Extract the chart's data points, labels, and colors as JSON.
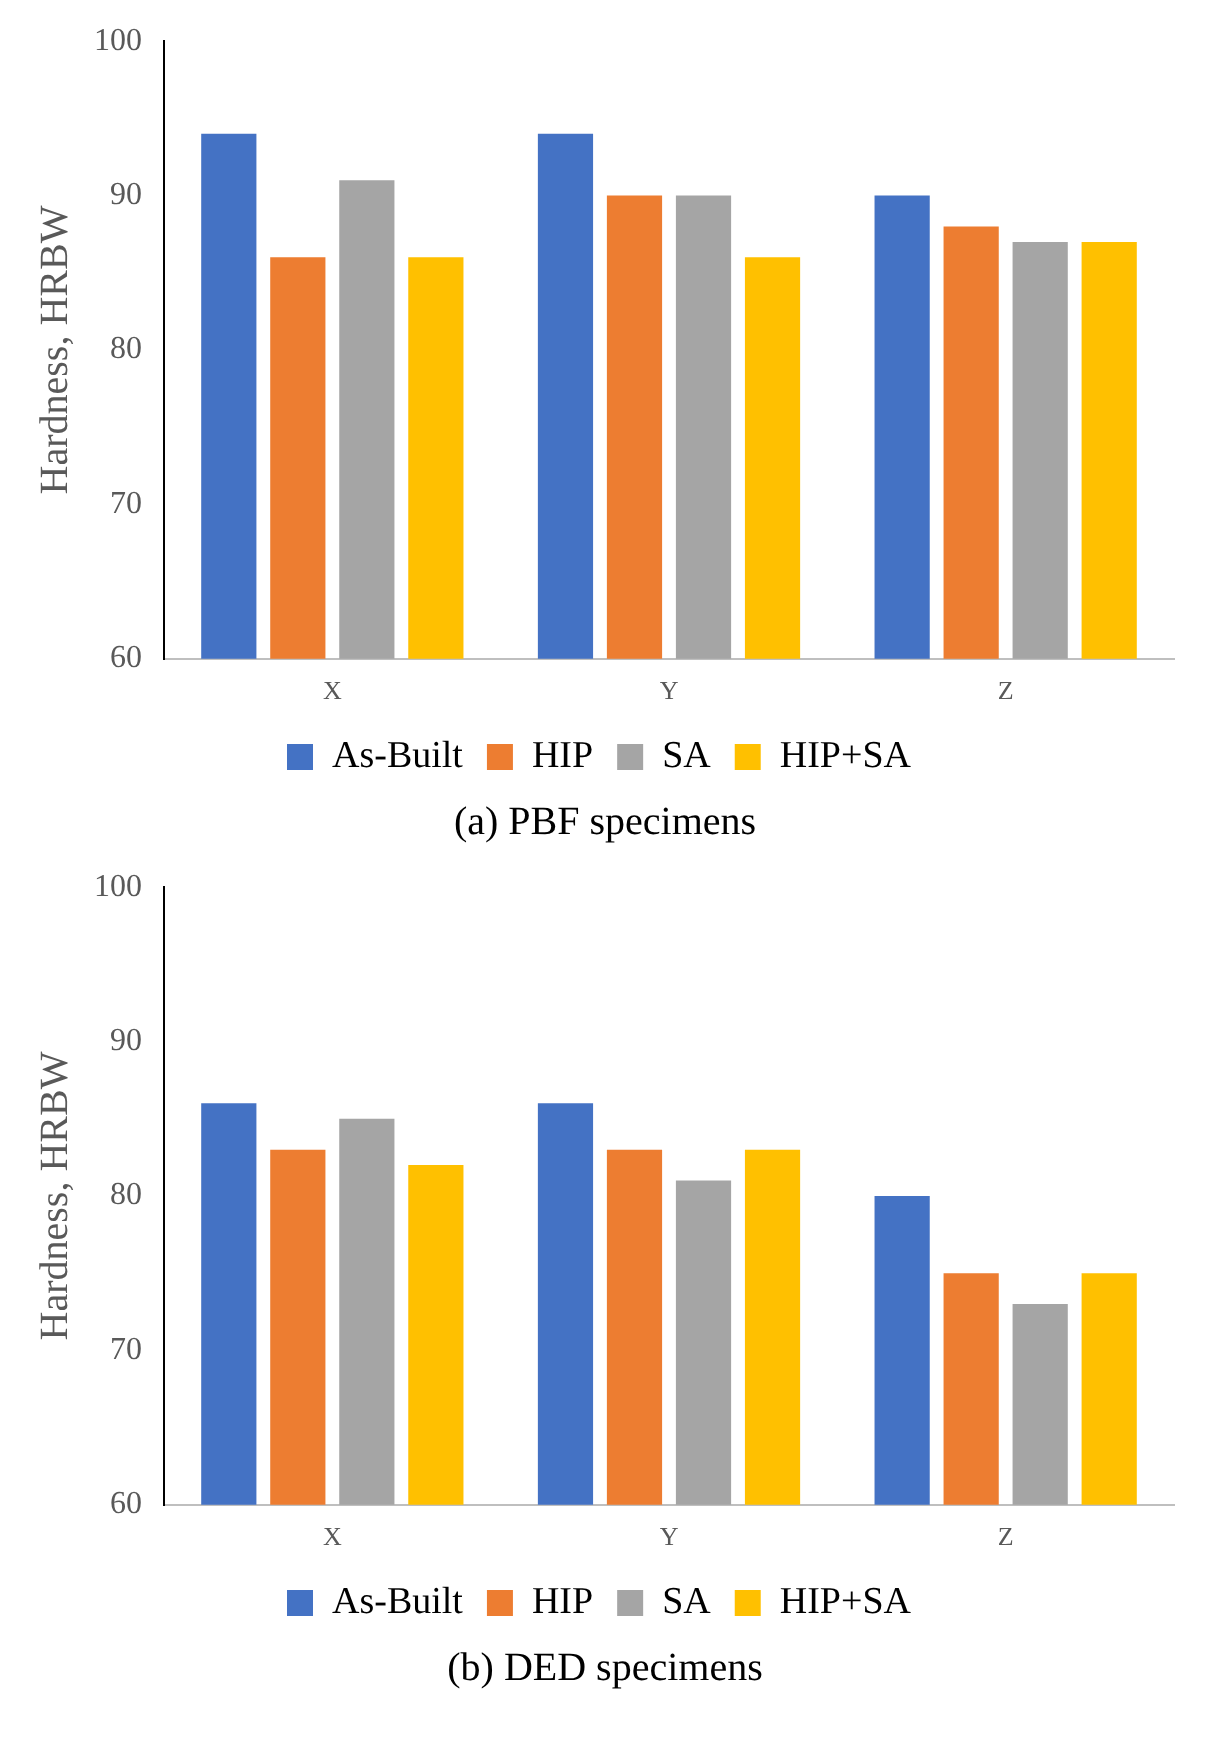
{
  "chart_data": [
    {
      "type": "bar",
      "title": "(a) PBF specimens",
      "ylabel": "Hardness, HRBW",
      "categories": [
        "X",
        "Y",
        "Z"
      ],
      "ylim": [
        60,
        100
      ],
      "yticks": [
        60,
        70,
        80,
        90,
        100
      ],
      "legend": "bottom",
      "series": [
        {
          "name": "As-Built",
          "color": "#4472c4",
          "values": [
            94,
            94,
            90
          ]
        },
        {
          "name": "HIP",
          "color": "#ed7d31",
          "values": [
            86,
            90,
            88
          ]
        },
        {
          "name": "SA",
          "color": "#a5a5a5",
          "values": [
            91,
            90,
            87
          ]
        },
        {
          "name": "HIP+SA",
          "color": "#ffc000",
          "values": [
            86,
            86,
            87
          ]
        }
      ]
    },
    {
      "type": "bar",
      "title": "(b) DED specimens",
      "ylabel": "Hardness, HRBW",
      "categories": [
        "X",
        "Y",
        "Z"
      ],
      "ylim": [
        60,
        100
      ],
      "yticks": [
        60,
        70,
        80,
        90,
        100
      ],
      "legend": "bottom",
      "series": [
        {
          "name": "As-Built",
          "color": "#4472c4",
          "values": [
            86,
            86,
            80
          ]
        },
        {
          "name": "HIP",
          "color": "#ed7d31",
          "values": [
            83,
            83,
            75
          ]
        },
        {
          "name": "SA",
          "color": "#a5a5a5",
          "values": [
            85,
            81,
            73
          ]
        },
        {
          "name": "HIP+SA",
          "color": "#ffc000",
          "values": [
            82,
            83,
            75
          ]
        }
      ]
    }
  ]
}
